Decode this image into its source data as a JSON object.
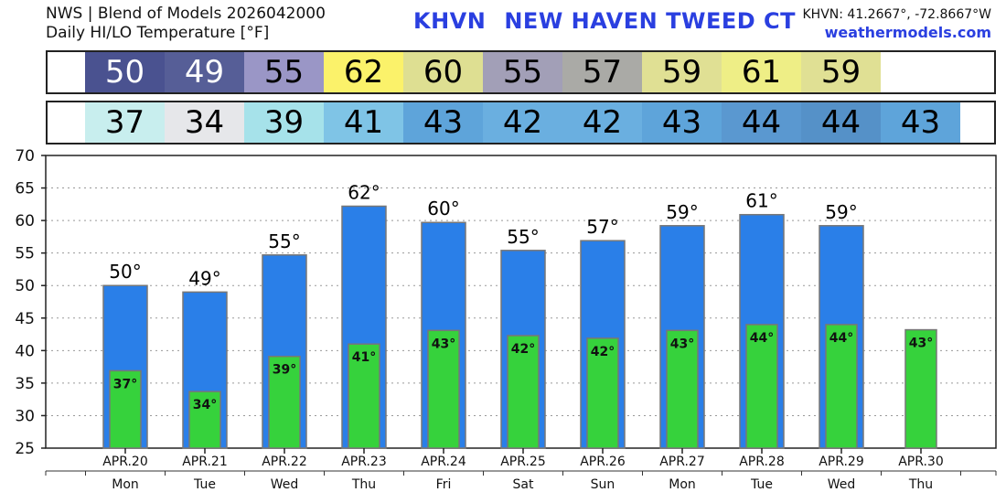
{
  "header": {
    "line1": "NWS | Blend of Models 2026042000",
    "line2": "Daily HI/LO Temperature [°F]",
    "station_id": "KHVN",
    "station_name": "NEW HAVEN TWEED CT",
    "coords": "KHVN: 41.2667°, -72.8667°W",
    "site": "weathermodels.com"
  },
  "hi_strip": [
    {
      "value": "50",
      "bg": "#4a5290",
      "fg": "#ffffff"
    },
    {
      "value": "49",
      "bg": "#565e97",
      "fg": "#ffffff"
    },
    {
      "value": "55",
      "bg": "#9a96c6",
      "fg": "#000000"
    },
    {
      "value": "62",
      "bg": "#fbf26a",
      "fg": "#000000"
    },
    {
      "value": "60",
      "bg": "#dedf92",
      "fg": "#000000"
    },
    {
      "value": "55",
      "bg": "#a29fb7",
      "fg": "#000000"
    },
    {
      "value": "57",
      "bg": "#aaaaa6",
      "fg": "#000000"
    },
    {
      "value": "59",
      "bg": "#e0e094",
      "fg": "#000000"
    },
    {
      "value": "61",
      "bg": "#eeee86",
      "fg": "#000000"
    },
    {
      "value": "59",
      "bg": "#e0e094",
      "fg": "#000000"
    }
  ],
  "lo_strip": [
    {
      "value": "37",
      "bg": "#c8eeee",
      "fg": "#000000"
    },
    {
      "value": "34",
      "bg": "#e6e7ea",
      "fg": "#000000"
    },
    {
      "value": "39",
      "bg": "#a6e2ea",
      "fg": "#000000"
    },
    {
      "value": "41",
      "bg": "#7fc4e6",
      "fg": "#000000"
    },
    {
      "value": "43",
      "bg": "#5ea4da",
      "fg": "#000000"
    },
    {
      "value": "42",
      "bg": "#6aafe0",
      "fg": "#000000"
    },
    {
      "value": "42",
      "bg": "#6aafe0",
      "fg": "#000000"
    },
    {
      "value": "43",
      "bg": "#5ea4da",
      "fg": "#000000"
    },
    {
      "value": "44",
      "bg": "#5a98d0",
      "fg": "#000000"
    },
    {
      "value": "44",
      "bg": "#5591c8",
      "fg": "#000000"
    },
    {
      "value": "43",
      "bg": "#5ea4da",
      "fg": "#000000"
    }
  ],
  "colors": {
    "high_bar": "#2a7fe8",
    "low_bar": "#36d23c",
    "bar_edge": "#777777",
    "grid": "#999999"
  },
  "chart_data": {
    "type": "bar",
    "title": "Daily HI/LO Temperature [°F]",
    "ylim": [
      25,
      70
    ],
    "yticks": [
      25,
      30,
      35,
      40,
      45,
      50,
      55,
      60,
      65,
      70
    ],
    "grid": true,
    "categories": [
      "APR.20",
      "APR.21",
      "APR.22",
      "APR.23",
      "APR.24",
      "APR.25",
      "APR.26",
      "APR.27",
      "APR.28",
      "APR.29",
      "APR.30"
    ],
    "weekdays": [
      "Mon",
      "Tue",
      "Wed",
      "Thu",
      "Fri",
      "Sat",
      "Sun",
      "Mon",
      "Tue",
      "Wed",
      "Thu"
    ],
    "series": [
      {
        "values": [
          50,
          49,
          54.7,
          62.2,
          59.7,
          55.4,
          56.9,
          59.2,
          60.9,
          59.2,
          null
        ],
        "labels": [
          "50°",
          "49°",
          "55°",
          "62°",
          "60°",
          "55°",
          "57°",
          "59°",
          "61°",
          "59°",
          ""
        ]
      },
      {
        "values": [
          36.9,
          33.7,
          39.1,
          41,
          43.1,
          42.3,
          41.9,
          43.1,
          44,
          44,
          43.2
        ],
        "labels": [
          "37°",
          "34°",
          "39°",
          "41°",
          "43°",
          "42°",
          "42°",
          "43°",
          "44°",
          "44°",
          "43°"
        ]
      }
    ]
  }
}
